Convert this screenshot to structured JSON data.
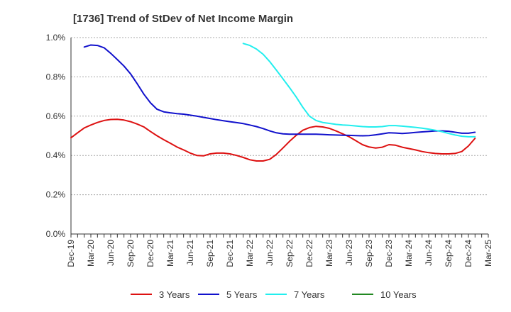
{
  "chart_data": {
    "type": "line",
    "title": "[1736]  Trend of StDev of Net Income Margin",
    "xlabel": "",
    "ylabel": "",
    "x_range": [
      "2019-12",
      "2025-03"
    ],
    "x_ticks": [
      "Dec-19",
      "Mar-20",
      "Jun-20",
      "Sep-20",
      "Dec-20",
      "Mar-21",
      "Jun-21",
      "Sep-21",
      "Dec-21",
      "Mar-22",
      "Jun-22",
      "Sep-22",
      "Dec-22",
      "Mar-23",
      "Jun-23",
      "Sep-23",
      "Dec-23",
      "Mar-24",
      "Jun-24",
      "Sep-24",
      "Dec-24",
      "Mar-25"
    ],
    "ylim": [
      0,
      1.0
    ],
    "y_ticks": [
      "0.0%",
      "0.2%",
      "0.4%",
      "0.6%",
      "0.8%",
      "1.0%"
    ],
    "grid": "horizontal dashed",
    "legend_position": "bottom",
    "series": [
      {
        "name": "3 Years",
        "color": "#dd1111",
        "points": [
          [
            "2019-12",
            0.49
          ],
          [
            "2020-01",
            0.515
          ],
          [
            "2020-02",
            0.54
          ],
          [
            "2020-03",
            0.555
          ],
          [
            "2020-04",
            0.568
          ],
          [
            "2020-05",
            0.578
          ],
          [
            "2020-06",
            0.583
          ],
          [
            "2020-07",
            0.584
          ],
          [
            "2020-08",
            0.58
          ],
          [
            "2020-09",
            0.572
          ],
          [
            "2020-10",
            0.56
          ],
          [
            "2020-11",
            0.545
          ],
          [
            "2020-12",
            0.522
          ],
          [
            "2021-01",
            0.5
          ],
          [
            "2021-02",
            0.48
          ],
          [
            "2021-03",
            0.462
          ],
          [
            "2021-04",
            0.443
          ],
          [
            "2021-05",
            0.428
          ],
          [
            "2021-06",
            0.412
          ],
          [
            "2021-07",
            0.4
          ],
          [
            "2021-08",
            0.398
          ],
          [
            "2021-09",
            0.408
          ],
          [
            "2021-10",
            0.412
          ],
          [
            "2021-11",
            0.412
          ],
          [
            "2021-12",
            0.408
          ],
          [
            "2022-01",
            0.4
          ],
          [
            "2022-02",
            0.39
          ],
          [
            "2022-03",
            0.378
          ],
          [
            "2022-04",
            0.372
          ],
          [
            "2022-05",
            0.372
          ],
          [
            "2022-06",
            0.38
          ],
          [
            "2022-07",
            0.405
          ],
          [
            "2022-08",
            0.438
          ],
          [
            "2022-09",
            0.472
          ],
          [
            "2022-10",
            0.502
          ],
          [
            "2022-11",
            0.528
          ],
          [
            "2022-12",
            0.542
          ],
          [
            "2023-01",
            0.548
          ],
          [
            "2023-02",
            0.545
          ],
          [
            "2023-03",
            0.538
          ],
          [
            "2023-04",
            0.525
          ],
          [
            "2023-05",
            0.51
          ],
          [
            "2023-06",
            0.495
          ],
          [
            "2023-07",
            0.475
          ],
          [
            "2023-08",
            0.455
          ],
          [
            "2023-09",
            0.443
          ],
          [
            "2023-10",
            0.438
          ],
          [
            "2023-11",
            0.442
          ],
          [
            "2023-12",
            0.455
          ],
          [
            "2024-01",
            0.452
          ],
          [
            "2024-02",
            0.442
          ],
          [
            "2024-03",
            0.435
          ],
          [
            "2024-04",
            0.428
          ],
          [
            "2024-05",
            0.42
          ],
          [
            "2024-06",
            0.414
          ],
          [
            "2024-07",
            0.41
          ],
          [
            "2024-08",
            0.408
          ],
          [
            "2024-09",
            0.408
          ],
          [
            "2024-10",
            0.41
          ],
          [
            "2024-11",
            0.42
          ],
          [
            "2024-12",
            0.448
          ],
          [
            "2025-01",
            0.487
          ]
        ]
      },
      {
        "name": "5 Years",
        "color": "#1111cc",
        "points": [
          [
            "2020-02",
            0.952
          ],
          [
            "2020-03",
            0.962
          ],
          [
            "2020-04",
            0.96
          ],
          [
            "2020-05",
            0.948
          ],
          [
            "2020-06",
            0.92
          ],
          [
            "2020-07",
            0.888
          ],
          [
            "2020-08",
            0.855
          ],
          [
            "2020-09",
            0.815
          ],
          [
            "2020-10",
            0.765
          ],
          [
            "2020-11",
            0.712
          ],
          [
            "2020-12",
            0.668
          ],
          [
            "2021-01",
            0.635
          ],
          [
            "2021-02",
            0.622
          ],
          [
            "2021-03",
            0.617
          ],
          [
            "2021-04",
            0.613
          ],
          [
            "2021-05",
            0.61
          ],
          [
            "2021-06",
            0.605
          ],
          [
            "2021-07",
            0.6
          ],
          [
            "2021-08",
            0.594
          ],
          [
            "2021-09",
            0.588
          ],
          [
            "2021-10",
            0.582
          ],
          [
            "2021-11",
            0.577
          ],
          [
            "2021-12",
            0.572
          ],
          [
            "2022-01",
            0.567
          ],
          [
            "2022-02",
            0.562
          ],
          [
            "2022-03",
            0.555
          ],
          [
            "2022-04",
            0.547
          ],
          [
            "2022-05",
            0.537
          ],
          [
            "2022-06",
            0.525
          ],
          [
            "2022-07",
            0.515
          ],
          [
            "2022-08",
            0.51
          ],
          [
            "2022-09",
            0.508
          ],
          [
            "2022-10",
            0.508
          ],
          [
            "2022-11",
            0.508
          ],
          [
            "2022-12",
            0.508
          ],
          [
            "2023-01",
            0.508
          ],
          [
            "2023-02",
            0.507
          ],
          [
            "2023-03",
            0.505
          ],
          [
            "2023-04",
            0.504
          ],
          [
            "2023-05",
            0.503
          ],
          [
            "2023-06",
            0.502
          ],
          [
            "2023-07",
            0.501
          ],
          [
            "2023-08",
            0.5
          ],
          [
            "2023-09",
            0.501
          ],
          [
            "2023-10",
            0.505
          ],
          [
            "2023-11",
            0.51
          ],
          [
            "2023-12",
            0.515
          ],
          [
            "2024-01",
            0.514
          ],
          [
            "2024-02",
            0.512
          ],
          [
            "2024-03",
            0.514
          ],
          [
            "2024-04",
            0.517
          ],
          [
            "2024-05",
            0.52
          ],
          [
            "2024-06",
            0.522
          ],
          [
            "2024-07",
            0.525
          ],
          [
            "2024-08",
            0.525
          ],
          [
            "2024-09",
            0.523
          ],
          [
            "2024-10",
            0.518
          ],
          [
            "2024-11",
            0.513
          ],
          [
            "2024-12",
            0.513
          ],
          [
            "2025-01",
            0.518
          ]
        ]
      },
      {
        "name": "7 Years",
        "color": "#22eeee",
        "points": [
          [
            "2022-02",
            0.97
          ],
          [
            "2022-03",
            0.96
          ],
          [
            "2022-04",
            0.942
          ],
          [
            "2022-05",
            0.915
          ],
          [
            "2022-06",
            0.878
          ],
          [
            "2022-07",
            0.835
          ],
          [
            "2022-08",
            0.79
          ],
          [
            "2022-09",
            0.745
          ],
          [
            "2022-10",
            0.698
          ],
          [
            "2022-11",
            0.645
          ],
          [
            "2022-12",
            0.6
          ],
          [
            "2023-01",
            0.578
          ],
          [
            "2023-02",
            0.568
          ],
          [
            "2023-03",
            0.563
          ],
          [
            "2023-04",
            0.558
          ],
          [
            "2023-05",
            0.555
          ],
          [
            "2023-06",
            0.553
          ],
          [
            "2023-07",
            0.55
          ],
          [
            "2023-08",
            0.547
          ],
          [
            "2023-09",
            0.545
          ],
          [
            "2023-10",
            0.545
          ],
          [
            "2023-11",
            0.547
          ],
          [
            "2023-12",
            0.552
          ],
          [
            "2024-01",
            0.552
          ],
          [
            "2024-02",
            0.549
          ],
          [
            "2024-03",
            0.546
          ],
          [
            "2024-04",
            0.543
          ],
          [
            "2024-05",
            0.539
          ],
          [
            "2024-06",
            0.534
          ],
          [
            "2024-07",
            0.528
          ],
          [
            "2024-08",
            0.521
          ],
          [
            "2024-09",
            0.512
          ],
          [
            "2024-10",
            0.504
          ],
          [
            "2024-11",
            0.498
          ],
          [
            "2024-12",
            0.495
          ],
          [
            "2025-01",
            0.495
          ]
        ]
      },
      {
        "name": "10 Years",
        "color": "#228822",
        "points": []
      }
    ]
  }
}
